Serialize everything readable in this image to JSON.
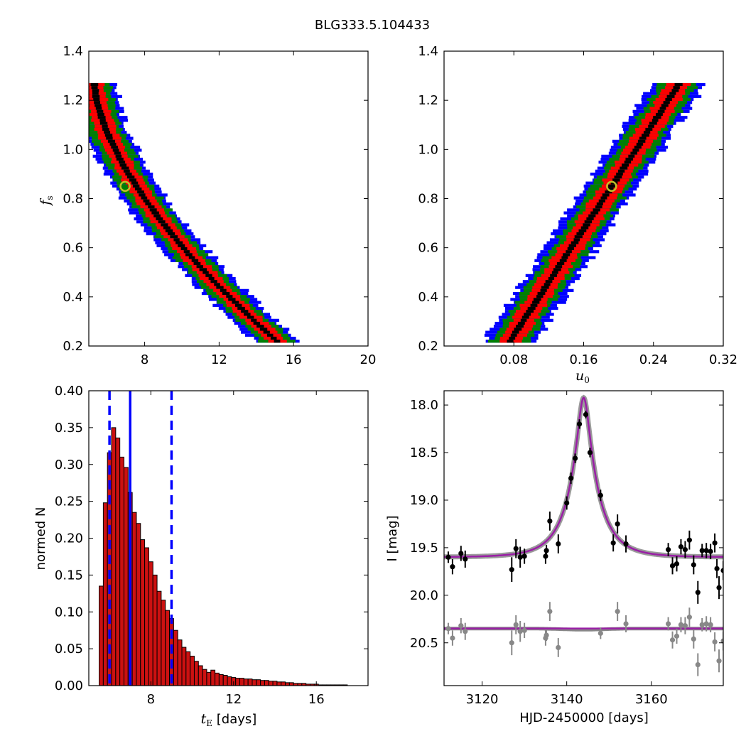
{
  "figure": {
    "title": "BLG333.5.104433"
  },
  "colors": {
    "black_level": "#000000",
    "red_level": "#ff0000",
    "green_level": "#008000",
    "blue_level": "#0000ff",
    "marker_edge": "#bfbf2a",
    "hist_bar": "#cc1111",
    "vline": "#0000ff",
    "model_line": "#9a1fa6",
    "model_band": "#888888",
    "data_points": "#000000",
    "residual_points": "#888888"
  },
  "chart_data": [
    {
      "id": "fs_vs_tE",
      "type": "heatmap",
      "xlabel": "",
      "ylabel_main": "f",
      "ylabel_sub": "s",
      "xlim": [
        5,
        20
      ],
      "ylim": [
        0.2,
        1.4
      ],
      "xticks": [
        "8",
        "12",
        "16",
        "20"
      ],
      "xtick_values": [
        8,
        12,
        16,
        20
      ],
      "yticks": [
        "0.2",
        "0.4",
        "0.6",
        "0.8",
        "1.0",
        "1.2",
        "1.4"
      ],
      "ytick_values": [
        0.2,
        0.4,
        0.6,
        0.8,
        1.0,
        1.2,
        1.4
      ],
      "best_fit": {
        "x": 6.95,
        "y": 0.85
      },
      "model": "x = 5.3 + 9.8*((1.27 - y)/1.05)^1.6",
      "band_halfwidths_x": {
        "black": 0.18,
        "red": 0.55,
        "green": 0.9,
        "blue": 1.2
      },
      "y_range": [
        0.22,
        1.27
      ]
    },
    {
      "id": "fs_vs_u0",
      "type": "heatmap",
      "xlabel_main": "u",
      "xlabel_sub": "0",
      "xlim": [
        0.0,
        0.32
      ],
      "ylim": [
        0.2,
        1.4
      ],
      "xticks": [
        "0.08",
        "0.16",
        "0.24",
        "0.32"
      ],
      "xtick_values": [
        0.08,
        0.16,
        0.24,
        0.32
      ],
      "yticks": [
        "0.2",
        "0.4",
        "0.6",
        "0.8",
        "1.0",
        "1.2",
        "1.4"
      ],
      "ytick_values": [
        0.2,
        0.4,
        0.6,
        0.8,
        1.0,
        1.2,
        1.4
      ],
      "best_fit": {
        "x": 0.192,
        "y": 0.85
      },
      "model": "u0 = 0.185*y + 0.035",
      "band_halfwidths_x": {
        "black": 0.004,
        "red": 0.014,
        "green": 0.022,
        "blue": 0.03
      },
      "y_range": [
        0.22,
        1.27
      ]
    },
    {
      "id": "tE_histogram",
      "type": "bar",
      "xlabel_main": "t",
      "xlabel_sub": "E",
      "xlabel_rest": " [days]",
      "ylabel": "normed N",
      "xlim": [
        5,
        18.5
      ],
      "ylim": [
        0.0,
        0.4
      ],
      "xticks": [
        "8",
        "12",
        "16"
      ],
      "xtick_values": [
        8,
        12,
        16
      ],
      "yticks": [
        "0.00",
        "0.05",
        "0.10",
        "0.15",
        "0.20",
        "0.25",
        "0.30",
        "0.35",
        "0.40"
      ],
      "ytick_values": [
        0.0,
        0.05,
        0.1,
        0.15,
        0.2,
        0.25,
        0.3,
        0.35,
        0.4
      ],
      "bin_start": 5.1,
      "bin_width": 0.2,
      "values": [
        0.0,
        0.0,
        0.135,
        0.248,
        0.316,
        0.35,
        0.336,
        0.31,
        0.296,
        0.262,
        0.235,
        0.22,
        0.198,
        0.187,
        0.168,
        0.15,
        0.128,
        0.116,
        0.102,
        0.091,
        0.075,
        0.062,
        0.052,
        0.046,
        0.04,
        0.033,
        0.027,
        0.022,
        0.018,
        0.021,
        0.017,
        0.015,
        0.014,
        0.012,
        0.011,
        0.01,
        0.01,
        0.009,
        0.009,
        0.008,
        0.008,
        0.007,
        0.007,
        0.006,
        0.006,
        0.005,
        0.005,
        0.004,
        0.004,
        0.003,
        0.003,
        0.003,
        0.002,
        0.002,
        0.002,
        0.001,
        0.001,
        0.001,
        0.001,
        0.001,
        0.001,
        0.001,
        0.0,
        0.0,
        0.0,
        0.0,
        0.0
      ],
      "median": 7.0,
      "lower": 6.0,
      "upper": 9.0
    },
    {
      "id": "lightcurve",
      "type": "scatter",
      "xlabel": "HJD-2450000 [days]",
      "ylabel": "I [mag]",
      "xlim": [
        3111,
        3177
      ],
      "ylim": [
        20.95,
        17.85
      ],
      "xticks": [
        "3120",
        "3140",
        "3160"
      ],
      "xtick_values": [
        3120,
        3140,
        3160
      ],
      "yticks": [
        "18.0",
        "18.5",
        "19.0",
        "19.5",
        "20.0",
        "20.5"
      ],
      "ytick_values": [
        18.0,
        18.5,
        19.0,
        19.5,
        20.0,
        20.5
      ],
      "model": {
        "t0": 3144.0,
        "tE": 7.0,
        "u0": 0.19,
        "fs": 0.85,
        "baseline": 19.6,
        "residual_offset": 20.35
      },
      "data": [
        [
          3112,
          19.6,
          0.06
        ],
        [
          3113,
          19.7,
          0.08
        ],
        [
          3115,
          19.56,
          0.08
        ],
        [
          3116,
          19.62,
          0.09
        ],
        [
          3127,
          19.73,
          0.13
        ],
        [
          3128,
          19.51,
          0.1
        ],
        [
          3129,
          19.6,
          0.11
        ],
        [
          3130,
          19.59,
          0.08
        ],
        [
          3135,
          19.59,
          0.08
        ],
        [
          3135.2,
          19.53,
          0.06
        ],
        [
          3136,
          19.22,
          0.1
        ],
        [
          3138,
          19.46,
          0.1
        ],
        [
          3140,
          19.03,
          0.07
        ],
        [
          3141,
          18.77,
          0.06
        ],
        [
          3142,
          18.56,
          0.05
        ],
        [
          3143,
          18.2,
          0.05
        ],
        [
          3144.5,
          18.1,
          0.04
        ],
        [
          3145.5,
          18.5,
          0.05
        ],
        [
          3148,
          18.95,
          0.06
        ],
        [
          3151,
          19.45,
          0.09
        ],
        [
          3152,
          19.25,
          0.1
        ],
        [
          3154,
          19.46,
          0.09
        ],
        [
          3164,
          19.52,
          0.07
        ],
        [
          3165,
          19.69,
          0.09
        ],
        [
          3166,
          19.67,
          0.08
        ],
        [
          3167,
          19.49,
          0.08
        ],
        [
          3168,
          19.52,
          0.09
        ],
        [
          3169,
          19.42,
          0.1
        ],
        [
          3170,
          19.68,
          0.1
        ],
        [
          3171,
          19.97,
          0.12
        ],
        [
          3172,
          19.53,
          0.07
        ],
        [
          3173,
          19.53,
          0.08
        ],
        [
          3174,
          19.54,
          0.08
        ],
        [
          3175,
          19.45,
          0.1
        ],
        [
          3175.5,
          19.72,
          0.1
        ],
        [
          3176,
          19.92,
          0.12
        ],
        [
          3177,
          19.74,
          0.1
        ]
      ],
      "residuals": [
        [
          3112,
          20.35,
          0.06
        ],
        [
          3113,
          20.45,
          0.08
        ],
        [
          3115,
          20.32,
          0.08
        ],
        [
          3116,
          20.38,
          0.09
        ],
        [
          3127,
          20.5,
          0.13
        ],
        [
          3128,
          20.31,
          0.1
        ],
        [
          3129,
          20.38,
          0.11
        ],
        [
          3130,
          20.37,
          0.08
        ],
        [
          3135,
          20.45,
          0.08
        ],
        [
          3135.2,
          20.42,
          0.06
        ],
        [
          3136,
          20.17,
          0.1
        ],
        [
          3138,
          20.55,
          0.1
        ],
        [
          3148,
          20.4,
          0.06
        ],
        [
          3152,
          20.17,
          0.1
        ],
        [
          3154,
          20.3,
          0.09
        ],
        [
          3164,
          20.3,
          0.07
        ],
        [
          3165,
          20.47,
          0.09
        ],
        [
          3166,
          20.43,
          0.08
        ],
        [
          3167,
          20.31,
          0.08
        ],
        [
          3168,
          20.32,
          0.09
        ],
        [
          3169,
          20.23,
          0.1
        ],
        [
          3170,
          20.46,
          0.1
        ],
        [
          3171,
          20.73,
          0.12
        ],
        [
          3172,
          20.31,
          0.07
        ],
        [
          3173,
          20.3,
          0.08
        ],
        [
          3174,
          20.31,
          0.08
        ],
        [
          3175,
          20.49,
          0.1
        ],
        [
          3176,
          20.69,
          0.12
        ],
        [
          3177,
          20.48,
          0.1
        ]
      ]
    }
  ]
}
